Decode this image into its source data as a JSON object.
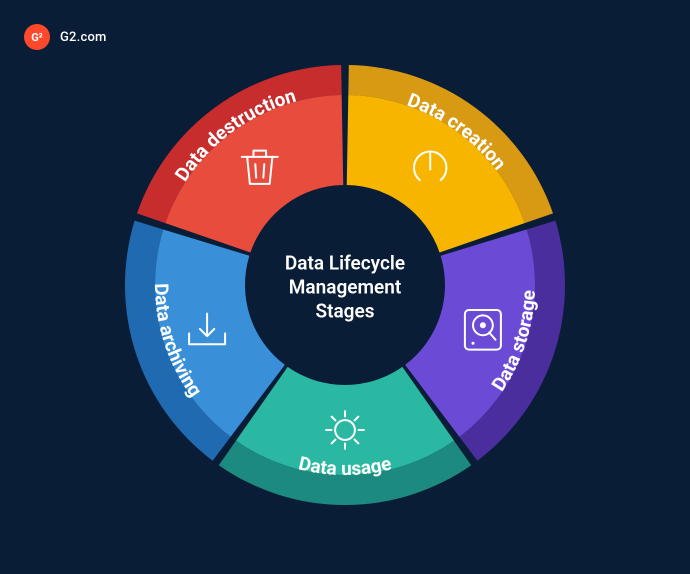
{
  "brand": {
    "badge_text": "G²",
    "name": "G2.com",
    "badge_bg": "#ff492c",
    "text_color": "#ffffff"
  },
  "background_color": "#0a1d37",
  "chart": {
    "type": "donut-segmented",
    "center_label": "Data Lifecycle\nManagement\nStages",
    "center_bg": "#0a1d37",
    "center_text_color": "#ffffff",
    "center_fontsize": 19,
    "outer_radius": 220,
    "inner_radius": 100,
    "gap_deg": 2,
    "start_angle_deg": -90,
    "segments": [
      {
        "id": "creation",
        "label": "Data creation",
        "outer_color": "#d89a12",
        "inner_color": "#f7b500",
        "icon": "power",
        "icon_color": "#ffffff"
      },
      {
        "id": "storage",
        "label": "Data storage",
        "outer_color": "#4a2e9e",
        "inner_color": "#6b4bd6",
        "icon": "hdd",
        "icon_color": "#ffffff"
      },
      {
        "id": "usage",
        "label": "Data usage",
        "outer_color": "#1c8a7e",
        "inner_color": "#2bb8a3",
        "icon": "gear",
        "icon_color": "#ffffff"
      },
      {
        "id": "archiving",
        "label": "Data archiving",
        "outer_color": "#1f6ab0",
        "inner_color": "#3a8fd9",
        "icon": "download-tray",
        "icon_color": "#ffffff"
      },
      {
        "id": "destruction",
        "label": "Data destruction",
        "outer_color": "#c82d2d",
        "inner_color": "#e74c3c",
        "icon": "trash",
        "icon_color": "#ffffff"
      }
    ],
    "label_radius": 190,
    "icon_radius": 145,
    "label_fontsize": 19,
    "label_color": "#ffffff",
    "outer_band_width": 30
  }
}
